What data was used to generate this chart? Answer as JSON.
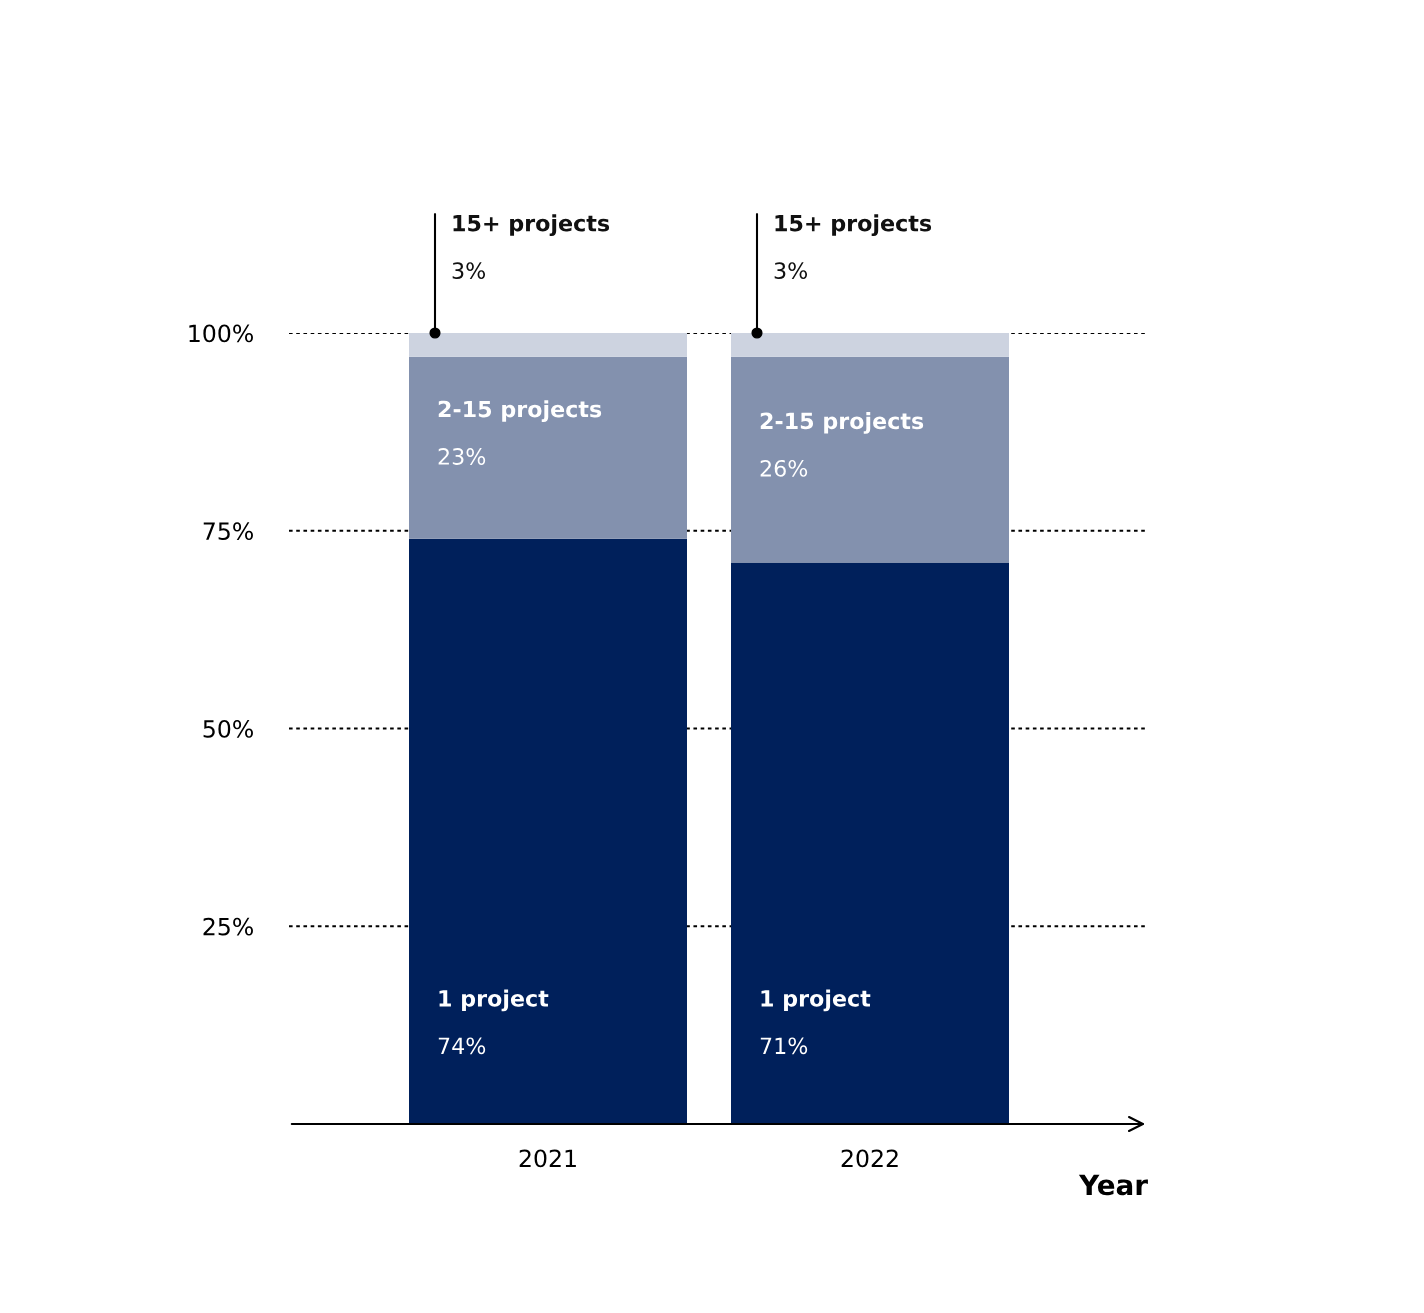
{
  "chart_data": {
    "type": "bar",
    "stacked": true,
    "categories": [
      "2021",
      "2022"
    ],
    "xlabel": "Year",
    "series": [
      {
        "name": "1 project",
        "color": "#00205b",
        "values": [
          74,
          71
        ],
        "value_labels": [
          "74%",
          "71%"
        ]
      },
      {
        "name": "2-15 projects",
        "color": "#8391ae",
        "values": [
          23,
          26
        ],
        "value_labels": [
          "23%",
          "26%"
        ]
      },
      {
        "name": "15+ projects",
        "color": "#cdd3e0",
        "values": [
          3,
          3
        ],
        "value_labels": [
          "3%",
          "3%"
        ]
      }
    ],
    "ylim": [
      0,
      100
    ],
    "yticks": [
      {
        "value": 25,
        "label": "25%"
      },
      {
        "value": 50,
        "label": "50%"
      },
      {
        "value": 75,
        "label": "75%"
      },
      {
        "value": 100,
        "label": "100%"
      }
    ],
    "grid": "y"
  }
}
